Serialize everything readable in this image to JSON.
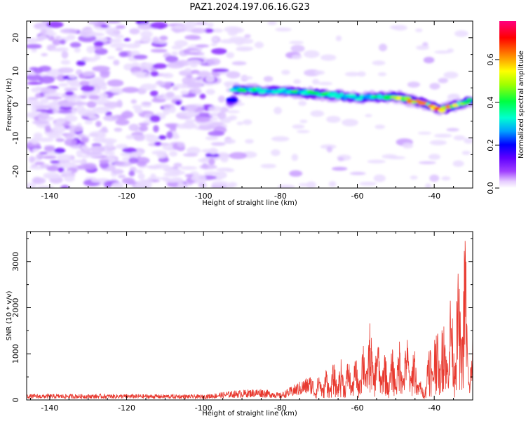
{
  "title": "PAZ1.2024.197.06.16.G23",
  "chart_data": [
    {
      "type": "heatmap",
      "xlabel": "Height of straight line (km)",
      "ylabel": "Frequency (Hz)",
      "xlim": [
        -146,
        -30
      ],
      "ylim": [
        -25,
        25
      ],
      "x_ticks": [
        "-140",
        "-120",
        "-100",
        "-80",
        "-60",
        "-40"
      ],
      "y_ticks": [
        "-20",
        "-10",
        "0",
        "10",
        "20"
      ],
      "colorbar": {
        "label": "Normalized spectral amplitude",
        "range": [
          0,
          0.78
        ],
        "ticks": [
          "0.0",
          "0.2",
          "0.4",
          "0.6"
        ],
        "colormap": [
          "#ffffff",
          "#d9b3ff",
          "#8000ff",
          "#0000ff",
          "#00c0ff",
          "#00ffc0",
          "#80ff00",
          "#ffff00",
          "#ff8000",
          "#ff0000",
          "#ff0080"
        ]
      },
      "ridge": {
        "description_points": [
          {
            "x": -92,
            "y": 4.5,
            "amp": 0.55
          },
          {
            "x": -80,
            "y": 4.0,
            "amp": 0.45
          },
          {
            "x": -70,
            "y": 3.2,
            "amp": 0.5
          },
          {
            "x": -60,
            "y": 2.0,
            "amp": 0.4
          },
          {
            "x": -50,
            "y": 2.5,
            "amp": 0.6
          },
          {
            "x": -44,
            "y": 0.8,
            "amp": 0.7
          },
          {
            "x": -38,
            "y": -1.5,
            "amp": 0.75
          },
          {
            "x": -31,
            "y": 1.0,
            "amp": 0.5
          }
        ]
      }
    },
    {
      "type": "line",
      "xlabel": "Height of straight line (km)",
      "ylabel": "SNR (10 * v/v)",
      "xlim": [
        -146,
        -30
      ],
      "ylim": [
        0,
        3650
      ],
      "x_ticks": [
        "-140",
        "-120",
        "-100",
        "-80",
        "-60",
        "-40"
      ],
      "y_ticks": [
        "0",
        "1000",
        "2000",
        "3000"
      ],
      "color": "#e8392f",
      "envelope": [
        {
          "x": -146,
          "y": 110
        },
        {
          "x": -120,
          "y": 110
        },
        {
          "x": -100,
          "y": 100
        },
        {
          "x": -92,
          "y": 180
        },
        {
          "x": -85,
          "y": 220
        },
        {
          "x": -80,
          "y": 130
        },
        {
          "x": -75,
          "y": 350
        },
        {
          "x": -70,
          "y": 550
        },
        {
          "x": -65,
          "y": 800
        },
        {
          "x": -60,
          "y": 850
        },
        {
          "x": -57,
          "y": 1600
        },
        {
          "x": -52,
          "y": 900
        },
        {
          "x": -48,
          "y": 1350
        },
        {
          "x": -45,
          "y": 1100
        },
        {
          "x": -43,
          "y": 200
        },
        {
          "x": -41,
          "y": 1500
        },
        {
          "x": -38,
          "y": 1800
        },
        {
          "x": -34,
          "y": 2400
        },
        {
          "x": -32,
          "y": 3600
        },
        {
          "x": -31,
          "y": 1000
        },
        {
          "x": -30,
          "y": 1300
        }
      ]
    }
  ]
}
